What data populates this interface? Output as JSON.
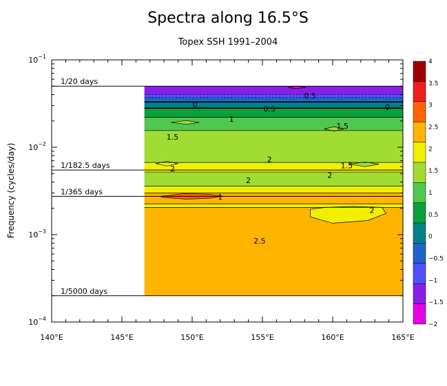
{
  "chart_data": {
    "type": "heatmap",
    "title": "Spectra along 16.5°S",
    "subtitle": "Topex SSH 1991–2004",
    "xlabel": "",
    "ylabel": "Frequency (cycles/day)",
    "x_ticks": [
      "140°E",
      "145°E",
      "150°E",
      "155°E",
      "160°E",
      "165°E"
    ],
    "x_tick_values": [
      140,
      145,
      150,
      155,
      160,
      165
    ],
    "xlim": [
      140,
      165
    ],
    "y_scale": "log",
    "ylim": [
      0.0001,
      0.1
    ],
    "y_ticks": [
      {
        "value": 0.1,
        "base": "10",
        "exp": "−1"
      },
      {
        "value": 0.01,
        "base": "10",
        "exp": "−2"
      },
      {
        "value": 0.001,
        "base": "10",
        "exp": "−3"
      },
      {
        "value": 0.0001,
        "base": "10",
        "exp": "−4"
      }
    ],
    "data_x_start": 146.6,
    "data_freq_range": [
      0.0002,
      0.05
    ],
    "reference_lines": [
      {
        "label": "1/20 days",
        "freq": 0.05
      },
      {
        "label": "1/182.5 days",
        "freq": 0.00548
      },
      {
        "label": "1/365 days",
        "freq": 0.00274
      },
      {
        "label": "1/5000 days",
        "freq": 0.0002
      }
    ],
    "bands": [
      {
        "level": -1.5,
        "freq_low": 0.04,
        "freq_high": 0.05
      },
      {
        "level": -1,
        "freq_low": 0.037,
        "freq_high": 0.04
      },
      {
        "level": -0.5,
        "freq_low": 0.033,
        "freq_high": 0.037
      },
      {
        "level": 0,
        "freq_low": 0.028,
        "freq_high": 0.033
      },
      {
        "level": 0.5,
        "freq_low": 0.022,
        "freq_high": 0.028
      },
      {
        "level": 1,
        "freq_low": 0.0155,
        "freq_high": 0.022
      },
      {
        "level": 1.5,
        "freq_low": 0.0067,
        "freq_high": 0.0155
      },
      {
        "level": 2,
        "freq_low": 0.0052,
        "freq_high": 0.0067
      },
      {
        "level": 1.5,
        "freq_low": 0.0036,
        "freq_high": 0.0052
      },
      {
        "level": 2,
        "freq_low": 0.003,
        "freq_high": 0.0036
      },
      {
        "level": 2.5,
        "freq_low": 0.00225,
        "freq_high": 0.003
      },
      {
        "level": 2,
        "freq_low": 0.00205,
        "freq_high": 0.00225
      },
      {
        "level": 2.5,
        "freq_low": 0.0002,
        "freq_high": 0.00205
      }
    ],
    "patches": [
      {
        "level": 2,
        "lon": [
          158.4,
          159.5,
          161.5,
          163.5,
          163.8,
          162.5,
          160,
          158.4
        ],
        "freq": [
          0.00195,
          0.00205,
          0.0021,
          0.00205,
          0.00175,
          0.00145,
          0.00135,
          0.0016
        ]
      },
      {
        "level": 3,
        "lon": [
          147.8,
          149.5,
          151.2,
          152.2,
          151.2,
          149.5,
          147.8
        ],
        "freq": [
          0.00275,
          0.00295,
          0.0029,
          0.00275,
          0.0026,
          0.00255,
          0.00268
        ]
      },
      {
        "level": -2,
        "lon": [
          156.8,
          157.4,
          158.1,
          157.4
        ],
        "freq": [
          0.0482,
          0.0499,
          0.0482,
          0.0468
        ]
      },
      {
        "level": 1.5,
        "lon": [
          148.5,
          149.6,
          150.5,
          149.6
        ],
        "freq": [
          0.0192,
          0.0202,
          0.0192,
          0.0183
        ]
      },
      {
        "level": 1.5,
        "lon": [
          159.4,
          160.1,
          160.8,
          160.1
        ],
        "freq": [
          0.0162,
          0.0172,
          0.0162,
          0.0153
        ]
      },
      {
        "level": 2,
        "lon": [
          147.4,
          148.2,
          149.0,
          148.2
        ],
        "freq": [
          0.0065,
          0.0069,
          0.0065,
          0.0061
        ]
      },
      {
        "level": 1.5,
        "lon": [
          161.2,
          162.3,
          163.3,
          162.3
        ],
        "freq": [
          0.0064,
          0.0068,
          0.0064,
          0.006
        ]
      }
    ],
    "contour_labels": [
      {
        "text": "0.5",
        "lon": 158.4,
        "freq": 0.039
      },
      {
        "text": "0",
        "lon": 150.2,
        "freq": 0.031
      },
      {
        "text": "0",
        "lon": 163.9,
        "freq": 0.029
      },
      {
        "text": "0.5",
        "lon": 155.5,
        "freq": 0.0275
      },
      {
        "text": "1",
        "lon": 152.8,
        "freq": 0.021
      },
      {
        "text": "1.5",
        "lon": 160.7,
        "freq": 0.0175
      },
      {
        "text": "1.5",
        "lon": 148.6,
        "freq": 0.0131
      },
      {
        "text": "2",
        "lon": 155.5,
        "freq": 0.0073
      },
      {
        "text": "2",
        "lon": 148.6,
        "freq": 0.0057
      },
      {
        "text": "1.5",
        "lon": 161.0,
        "freq": 0.0062
      },
      {
        "text": "2",
        "lon": 159.8,
        "freq": 0.0048
      },
      {
        "text": "2",
        "lon": 154.0,
        "freq": 0.0042
      },
      {
        "text": "1",
        "lon": 152.0,
        "freq": 0.00272
      },
      {
        "text": "2",
        "lon": 162.8,
        "freq": 0.0019
      },
      {
        "text": "2.5",
        "lon": 154.8,
        "freq": 0.00085
      }
    ],
    "colorbar": {
      "levels": [
        -2,
        -1.5,
        -1,
        -0.5,
        0,
        0.5,
        1,
        1.5,
        2,
        2.5,
        3,
        3.5,
        4
      ],
      "tick_labels": [
        "4",
        "3.5",
        "3",
        "2.5",
        "2",
        "1.5",
        "1",
        "0.5",
        "0",
        "−0.5",
        "−1",
        "−1.5",
        "−2"
      ],
      "colors": [
        "#e600e6",
        "#8a1ee8",
        "#5050ff",
        "#1e64c8",
        "#00828c",
        "#0aa03c",
        "#50c850",
        "#a0dc32",
        "#f0f000",
        "#ffb400",
        "#ff6400",
        "#f01e1e",
        "#a00000"
      ]
    }
  }
}
